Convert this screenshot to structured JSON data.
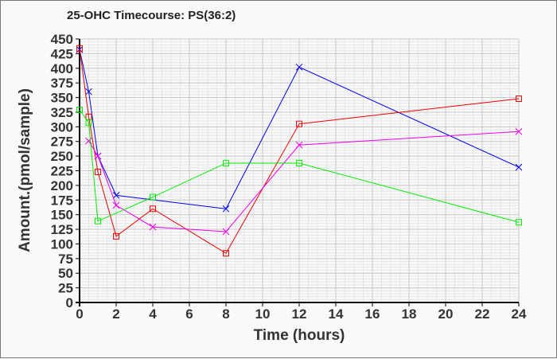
{
  "chart_data": {
    "type": "line",
    "title": "25-OHC Timecourse: PS(36:2)",
    "xlabel": "Time (hours)",
    "ylabel": "Amount.(pmol/sample)",
    "xlim": [
      0,
      24
    ],
    "ylim": [
      0,
      450
    ],
    "xticks": [
      0,
      2,
      4,
      6,
      8,
      10,
      12,
      14,
      16,
      18,
      20,
      22,
      24
    ],
    "yticks": [
      0,
      25,
      50,
      75,
      100,
      125,
      150,
      175,
      200,
      225,
      250,
      275,
      300,
      325,
      350,
      375,
      400,
      425,
      450
    ],
    "grid": true,
    "series": [
      {
        "name": "blue",
        "color": "#0000ee",
        "marker": "x",
        "x": [
          0,
          0.5,
          1,
          2,
          8,
          12,
          24
        ],
        "y": [
          432,
          360,
          250,
          183,
          160,
          402,
          231
        ]
      },
      {
        "name": "red",
        "color": "#ee0000",
        "marker": "square",
        "x": [
          0,
          0.5,
          1,
          2,
          4,
          8,
          12,
          24
        ],
        "y": [
          434,
          317,
          223,
          113,
          160,
          84,
          305,
          348
        ]
      },
      {
        "name": "magenta",
        "color": "#ee00ee",
        "marker": "x",
        "x": [
          0.5,
          1,
          2,
          4,
          8,
          12,
          24
        ],
        "y": [
          276,
          250,
          166,
          129,
          121,
          269,
          292
        ]
      },
      {
        "name": "green",
        "color": "#00ee00",
        "marker": "square",
        "x": [
          0,
          0.5,
          1,
          4,
          8,
          12,
          24
        ],
        "y": [
          329,
          307,
          139,
          180,
          238,
          238,
          137
        ]
      }
    ]
  }
}
